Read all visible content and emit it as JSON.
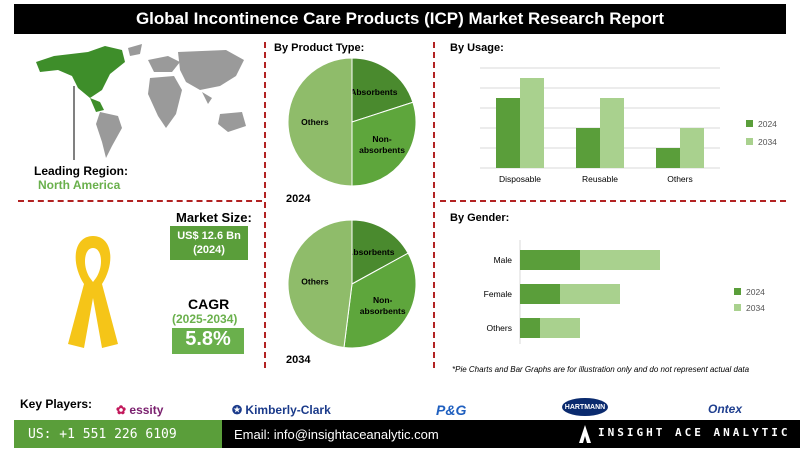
{
  "header": {
    "title": "Global Incontinence Care Products (ICP) Market Research Report"
  },
  "region": {
    "label": "Leading Region:",
    "value": "North America"
  },
  "market_size": {
    "label": "Market Size:",
    "value_line1": "US$ 12.6 Bn",
    "value_line2": "(2024)"
  },
  "cagr": {
    "label": "CAGR",
    "period": "(2025-2034)",
    "value": "5.8%"
  },
  "sections": {
    "product_type": "By  Product Type:",
    "usage": "By Usage:",
    "gender": "By Gender:"
  },
  "pie_year_labels": [
    "2024",
    "2034"
  ],
  "disclaimer": "*Pie Charts and Bar Graphs are for illustration only and do not represent actual data",
  "key_players": {
    "label": "Key Players:",
    "brands": [
      "essity",
      "Kimberly-Clark",
      "P&G",
      "HARTMANN",
      "Ontex"
    ]
  },
  "footer": {
    "phone": "US: +1 551 226 6109",
    "email": "Email: info@insightaceanalytic.com",
    "company": "INSIGHT ACE ANALYTIC"
  },
  "colors": {
    "dark_green": "#5a9e3a",
    "light_green": "#a9d18e",
    "mid_green": "#8fbc6a",
    "accent_red": "#b22222",
    "ribbon": "#f5c518"
  },
  "chart_data": [
    {
      "type": "pie",
      "title": "2024",
      "categories": [
        "Absorbents",
        "Non-absorbents",
        "Others"
      ],
      "values": [
        20,
        30,
        50
      ]
    },
    {
      "type": "pie",
      "title": "2034",
      "categories": [
        "Absorbents",
        "Non-absorbents",
        "Others"
      ],
      "values": [
        17,
        35,
        48
      ]
    },
    {
      "type": "bar",
      "title": "By Usage:",
      "categories": [
        "Disposable",
        "Reusable",
        "Others"
      ],
      "series": [
        {
          "name": "2024",
          "values": [
            3.5,
            2,
            1
          ]
        },
        {
          "name": "2034",
          "values": [
            4.5,
            3.5,
            2
          ]
        }
      ],
      "legend": "right"
    },
    {
      "type": "bar",
      "orientation": "horizontal",
      "stacked": true,
      "title": "By Gender:",
      "categories": [
        "Male",
        "Female",
        "Others"
      ],
      "series": [
        {
          "name": "2024",
          "values": [
            1.5,
            1,
            0.5
          ]
        },
        {
          "name": "2034",
          "values": [
            2,
            1.5,
            1
          ]
        }
      ],
      "legend": "right"
    }
  ]
}
